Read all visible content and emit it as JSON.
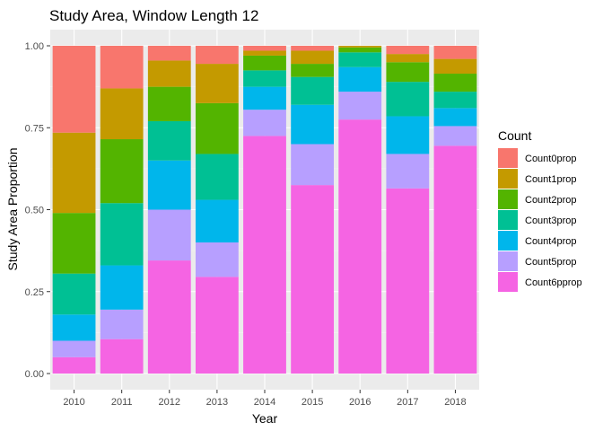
{
  "chart_data": {
    "type": "bar",
    "stacked": true,
    "title": "Study Area, Window Length 12",
    "xlabel": "Year",
    "ylabel": "Study Area Proportion",
    "ylim": [
      0,
      1
    ],
    "yticks": [
      "0.00",
      "0.25",
      "0.50",
      "0.75",
      "1.00"
    ],
    "grid": true,
    "legend_position": "right",
    "legend_title": "Count",
    "categories": [
      "2010",
      "2011",
      "2012",
      "2013",
      "2014",
      "2015",
      "2016",
      "2017",
      "2018"
    ],
    "series": [
      {
        "name": "Count6pprop",
        "color": "#F564E3",
        "values": [
          0.05,
          0.105,
          0.345,
          0.295,
          0.725,
          0.575,
          0.775,
          0.565,
          0.695
        ]
      },
      {
        "name": "Count5prop",
        "color": "#B79FFF",
        "values": [
          0.05,
          0.09,
          0.155,
          0.105,
          0.08,
          0.125,
          0.085,
          0.105,
          0.06
        ]
      },
      {
        "name": "Count4prop",
        "color": "#00B6EB",
        "values": [
          0.08,
          0.135,
          0.15,
          0.13,
          0.07,
          0.12,
          0.075,
          0.115,
          0.055
        ]
      },
      {
        "name": "Count3prop",
        "color": "#00C094",
        "values": [
          0.125,
          0.19,
          0.12,
          0.14,
          0.05,
          0.085,
          0.045,
          0.105,
          0.05
        ]
      },
      {
        "name": "Count2prop",
        "color": "#53B400",
        "values": [
          0.185,
          0.195,
          0.105,
          0.155,
          0.045,
          0.04,
          0.015,
          0.06,
          0.055
        ]
      },
      {
        "name": "Count1prop",
        "color": "#C49A00",
        "values": [
          0.245,
          0.155,
          0.08,
          0.12,
          0.015,
          0.04,
          0.005,
          0.025,
          0.045
        ]
      },
      {
        "name": "Count0prop",
        "color": "#F8766D",
        "values": [
          0.265,
          0.13,
          0.045,
          0.055,
          0.015,
          0.015,
          0.0,
          0.025,
          0.04
        ]
      }
    ],
    "legend_order": [
      "Count0prop",
      "Count1prop",
      "Count2prop",
      "Count3prop",
      "Count4prop",
      "Count5prop",
      "Count6pprop"
    ]
  }
}
